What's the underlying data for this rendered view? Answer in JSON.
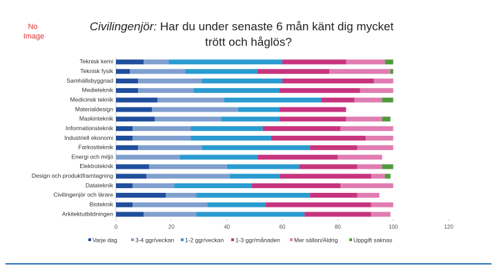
{
  "placeholder": "No\nImage",
  "chart_data": {
    "type": "stacked-barh",
    "title": {
      "prefix": "Civilingenjör:",
      "lines": [
        "Har du under senaste 6 mån känt dig mycket",
        "trött och håglös?"
      ]
    },
    "categories": [
      "Teknisk kemi",
      "Teknisk fysik",
      "Samhällsbyggnad",
      "Medieteknik",
      "Medicinsk teknik",
      "Materialdesign",
      "Maskinteknik",
      "Informationsteknik",
      "Industriell ekonomi",
      "Farkostteknik",
      "Energi och miljö",
      "Elektroteknik",
      "Design och produktframtagning",
      "Datateknik",
      "Civilingenjör och lärare",
      "Bioteknik",
      "Arkitektutbildningen"
    ],
    "series": [
      {
        "name": "Varje dag",
        "color": "#1f4e9c",
        "values": [
          10,
          5,
          8,
          8,
          15,
          13,
          14,
          6,
          6,
          8,
          0,
          12,
          11,
          6,
          18,
          6,
          10
        ]
      },
      {
        "name": "3-4 ggr/veckan",
        "color": "#7f9fcf",
        "values": [
          9,
          20,
          23,
          20,
          24,
          31,
          24,
          21,
          21,
          23,
          23,
          28,
          30,
          15,
          11,
          27,
          19
        ]
      },
      {
        "name": "1-2 ggr/veckan",
        "color": "#2a9bd0",
        "values": [
          41,
          26,
          29,
          31,
          35,
          15,
          21,
          26,
          29,
          39,
          28,
          26,
          18,
          28,
          41,
          21,
          39
        ]
      },
      {
        "name": "1-3 ggr/månaden",
        "color": "#c7347e",
        "values": [
          23,
          26,
          33,
          29,
          12,
          24,
          24,
          28,
          34,
          17,
          29,
          21,
          33,
          32,
          17,
          38,
          24
        ]
      },
      {
        "name": "Mer sällan/Aldrig",
        "color": "#e07cb1",
        "values": [
          14,
          22,
          7,
          12,
          10,
          0,
          13,
          19,
          10,
          13,
          16,
          9,
          5,
          19,
          8,
          8,
          7
        ]
      },
      {
        "name": "Uppgift saknas",
        "color": "#4e9a3c",
        "values": [
          3,
          1,
          0,
          0,
          4,
          0,
          3,
          0,
          0,
          0,
          0,
          4,
          2,
          0,
          0,
          0,
          0
        ]
      }
    ],
    "xlim": [
      0,
      120
    ],
    "xticks": [
      0,
      20,
      40,
      60,
      80,
      100,
      120
    ]
  }
}
